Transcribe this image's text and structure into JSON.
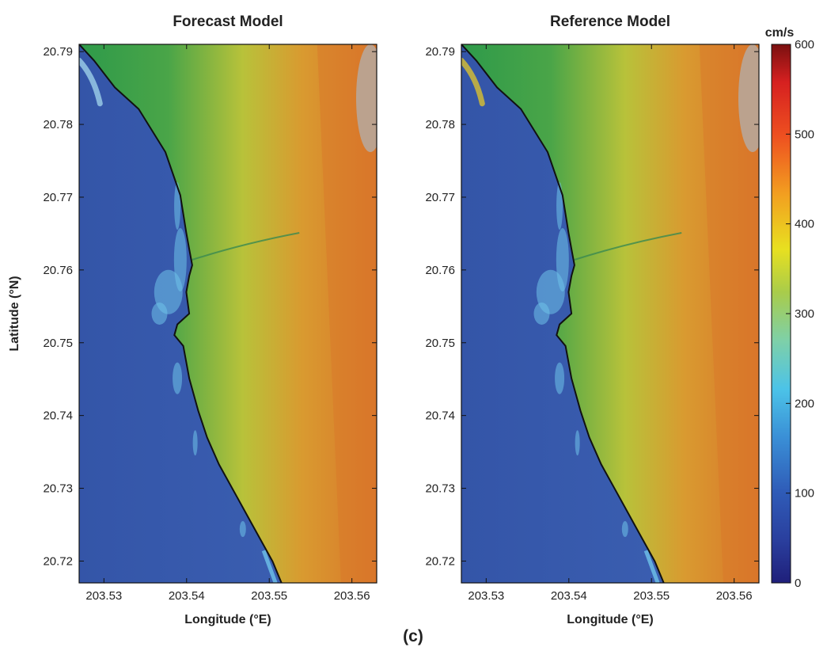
{
  "figure_label": "(c)",
  "chart_data": [
    {
      "type": "heatmap",
      "title": "Forecast Model",
      "xlabel": "Longitude (°E)",
      "ylabel": "Latitude (°N)",
      "xlim": [
        203.527,
        203.563
      ],
      "ylim": [
        20.717,
        20.791
      ],
      "xticks": [
        203.53,
        203.54,
        203.55,
        203.56
      ],
      "yticks": [
        20.72,
        20.73,
        20.74,
        20.75,
        20.76,
        20.77,
        20.78,
        20.79
      ],
      "xtick_labels": [
        "203.53",
        "203.54",
        "203.55",
        "203.56"
      ],
      "ytick_labels": [
        "20.72",
        "20.73",
        "20.74",
        "20.75",
        "20.76",
        "20.77",
        "20.78",
        "20.79"
      ]
    },
    {
      "type": "heatmap",
      "title": "Reference Model",
      "xlabel": "Longitude (°E)",
      "ylabel": "",
      "xlim": [
        203.527,
        203.563
      ],
      "ylim": [
        20.717,
        20.791
      ],
      "xticks": [
        203.53,
        203.54,
        203.55,
        203.56
      ],
      "yticks": [
        20.72,
        20.73,
        20.74,
        20.75,
        20.76,
        20.77,
        20.78,
        20.79
      ],
      "xtick_labels": [
        "203.53",
        "203.54",
        "203.55",
        "203.56"
      ],
      "ytick_labels": [
        "20.72",
        "20.73",
        "20.74",
        "20.75",
        "20.76",
        "20.77",
        "20.78",
        "20.79"
      ]
    }
  ],
  "colorbar": {
    "unit": "cm/s",
    "range": [
      0,
      600
    ],
    "ticks": [
      0,
      100,
      200,
      300,
      400,
      500,
      600
    ],
    "tick_labels": [
      "0",
      "100",
      "200",
      "300",
      "400",
      "500",
      "600"
    ],
    "colors": [
      "#1f1f7a",
      "#2a3f9e",
      "#2f5cb8",
      "#3a8fd6",
      "#4cc3e8",
      "#7ed0a8",
      "#a9cc4a",
      "#e8e020",
      "#f2a020",
      "#ee5020",
      "#d62020",
      "#7a1010"
    ]
  },
  "colors": {
    "ocean": "#3a5fb0",
    "ocean_deep": "#3455a8",
    "coast_green": "#2e9a4a",
    "land_yellow": "#c6c63a",
    "land_orange": "#de8a2e",
    "land_orange_deep": "#d9762a",
    "gray_peak": "#b0b0b0",
    "surf_light": "#6fc3ea",
    "coastline": "#111111"
  }
}
